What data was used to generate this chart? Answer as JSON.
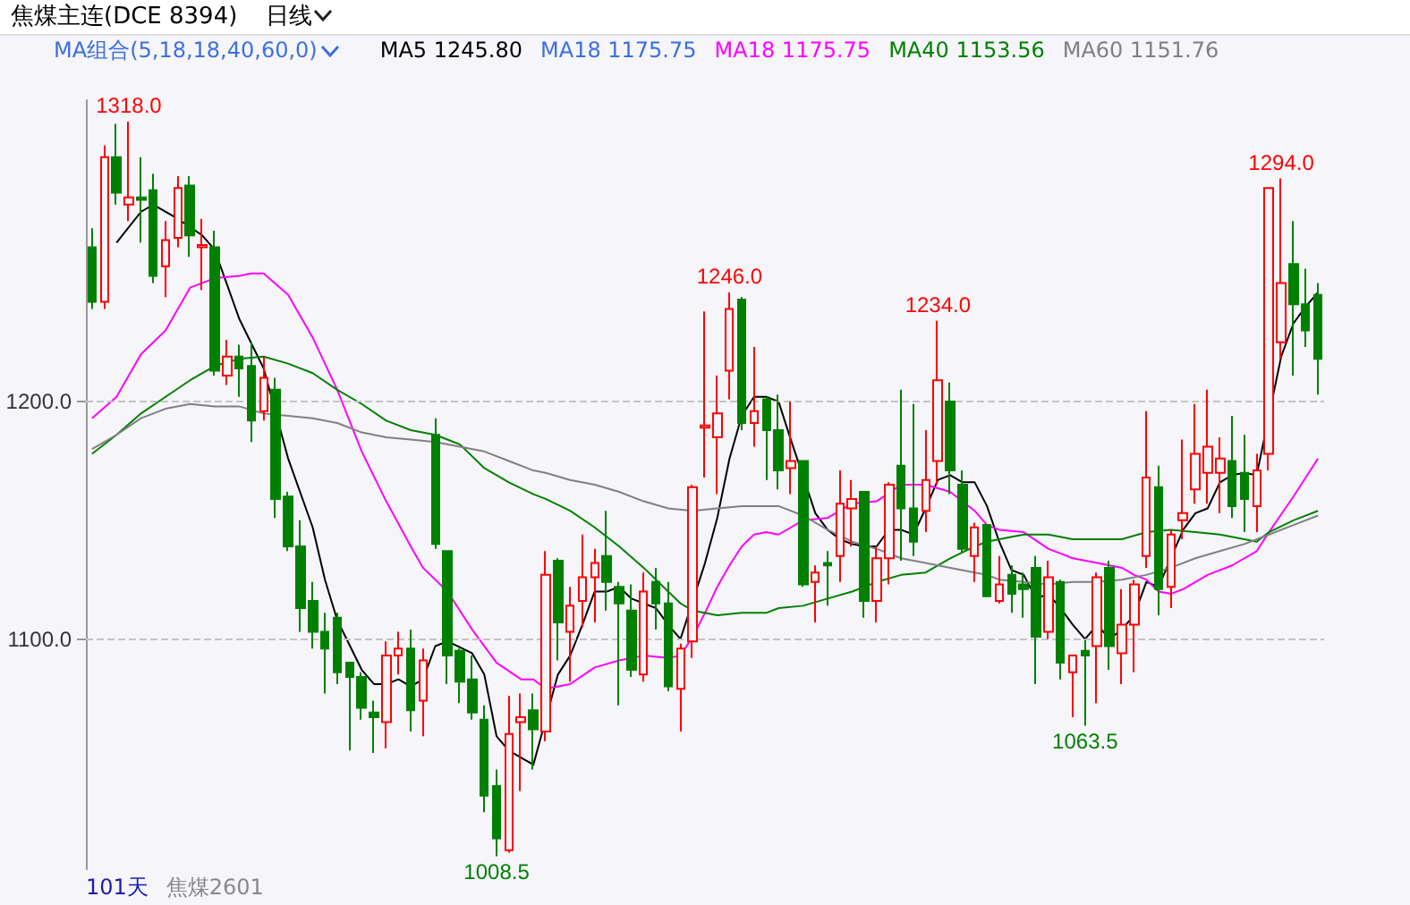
{
  "chart_data": {
    "type": "candlestick",
    "title": "焦煤主连(DCE 8394)",
    "subtitle": "日线",
    "legend_title": "MA组合(5,18,18,40,60,0)",
    "legend": "top",
    "grid": "y",
    "tick_labels": "y",
    "ylim": [
      1003,
      1327
    ],
    "yticks": [
      {
        "value": 1100,
        "label": "1100.0"
      },
      {
        "value": 1200,
        "label": "1200.0"
      }
    ],
    "categories": [
      null,
      null,
      null,
      null,
      null,
      null,
      null,
      null,
      null,
      null,
      null,
      null,
      null,
      null,
      null,
      null,
      null,
      null,
      null,
      null,
      null,
      null,
      null,
      null,
      null,
      null,
      null,
      null,
      null,
      null,
      null,
      null,
      null,
      null,
      null,
      null,
      null,
      null,
      null,
      null,
      null,
      null,
      null,
      null,
      null,
      null,
      null,
      null,
      null,
      null,
      null,
      null,
      null,
      null,
      null,
      null,
      null,
      null,
      null,
      null,
      null,
      null,
      null,
      null,
      null,
      null,
      null,
      null,
      null,
      null,
      null,
      null,
      null,
      null,
      null,
      null,
      null,
      null,
      null,
      null,
      null,
      null,
      null,
      null,
      null,
      null,
      null,
      null,
      null,
      null,
      null,
      null,
      null,
      null,
      null,
      null,
      null,
      null,
      null,
      null,
      null
    ],
    "ohlc": [
      [
        1265,
        1273,
        1239,
        1242
      ],
      [
        1242,
        1308,
        1239,
        1303
      ],
      [
        1303,
        1317,
        1283,
        1288
      ],
      [
        1283,
        1318,
        1276,
        1286
      ],
      [
        1286,
        1303,
        1267,
        1285
      ],
      [
        1289,
        1296,
        1250,
        1253
      ],
      [
        1257,
        1276,
        1244,
        1268
      ],
      [
        1269,
        1295,
        1265,
        1290
      ],
      [
        1291,
        1295,
        1261,
        1270
      ],
      [
        1265,
        1277,
        1247,
        1266
      ],
      [
        1265,
        1272,
        1211,
        1213
      ],
      [
        1211,
        1226,
        1207,
        1219
      ],
      [
        1219,
        1224,
        1202,
        1214
      ],
      [
        1215,
        1225,
        1183,
        1192
      ],
      [
        1196,
        1219,
        1192,
        1210
      ],
      [
        1205,
        1210,
        1151,
        1159
      ],
      [
        1160,
        1162,
        1137,
        1139
      ],
      [
        1139,
        1150,
        1103,
        1113
      ],
      [
        1116,
        1124,
        1096,
        1103
      ],
      [
        1103,
        1111,
        1077,
        1096
      ],
      [
        1109,
        1111,
        1081,
        1086
      ],
      [
        1090,
        1090,
        1053,
        1084
      ],
      [
        1084,
        1086,
        1066,
        1071
      ],
      [
        1069,
        1074,
        1052,
        1067
      ],
      [
        1065,
        1099,
        1054,
        1093
      ],
      [
        1093,
        1103,
        1085,
        1096
      ],
      [
        1096,
        1104,
        1061,
        1070
      ],
      [
        1074,
        1096,
        1059,
        1091
      ],
      [
        1186,
        1193,
        1138,
        1140
      ],
      [
        1137,
        1137,
        1081,
        1093
      ],
      [
        1095,
        1096,
        1073,
        1082
      ],
      [
        1083,
        1093,
        1066,
        1069
      ],
      [
        1066,
        1072,
        1027,
        1034
      ],
      [
        1038,
        1045,
        1008.5,
        1016
      ],
      [
        1011,
        1076,
        1010,
        1060
      ],
      [
        1065,
        1077,
        1036,
        1067
      ],
      [
        1070,
        1077,
        1045,
        1062
      ],
      [
        1061,
        1137,
        1057,
        1127
      ],
      [
        1133,
        1134,
        1091,
        1107
      ],
      [
        1103,
        1122,
        1082,
        1114
      ],
      [
        1116,
        1144,
        1105,
        1126
      ],
      [
        1126,
        1138,
        1107,
        1132
      ],
      [
        1135,
        1154,
        1112,
        1124
      ],
      [
        1122,
        1124,
        1072,
        1115
      ],
      [
        1112,
        1123,
        1084,
        1087
      ],
      [
        1085,
        1128,
        1082,
        1120
      ],
      [
        1124,
        1130,
        1104,
        1115
      ],
      [
        1115,
        1124,
        1078,
        1080
      ],
      [
        1079,
        1098,
        1061,
        1096
      ],
      [
        1099,
        1165,
        1092,
        1164
      ],
      [
        1189,
        1238,
        1168,
        1190
      ],
      [
        1185,
        1211,
        1161,
        1195
      ],
      [
        1213,
        1246,
        1201,
        1239
      ],
      [
        1243,
        1244,
        1188,
        1191
      ],
      [
        1191,
        1223,
        1181,
        1196
      ],
      [
        1201,
        1202,
        1167,
        1188
      ],
      [
        1188,
        1203,
        1163,
        1171
      ],
      [
        1172,
        1200,
        1161,
        1175
      ],
      [
        1175,
        1175,
        1122,
        1123
      ],
      [
        1124,
        1131,
        1107,
        1128
      ],
      [
        1132,
        1137,
        1114,
        1131
      ],
      [
        1135,
        1171,
        1124,
        1157
      ],
      [
        1155,
        1167,
        1139,
        1159
      ],
      [
        1162,
        1162,
        1109,
        1116
      ],
      [
        1116,
        1139,
        1107,
        1134
      ],
      [
        1134,
        1166,
        1123,
        1165
      ],
      [
        1173,
        1205,
        1133,
        1155
      ],
      [
        1155,
        1199,
        1135,
        1141
      ],
      [
        1154,
        1188,
        1145,
        1167
      ],
      [
        1175,
        1234,
        1165,
        1209
      ],
      [
        1200,
        1208,
        1161,
        1171
      ],
      [
        1165,
        1171,
        1136,
        1138
      ],
      [
        1135,
        1149,
        1124,
        1147
      ],
      [
        1148,
        1148,
        1118,
        1118
      ],
      [
        1116,
        1135,
        1115,
        1123
      ],
      [
        1127,
        1131,
        1111,
        1119
      ],
      [
        1123,
        1128,
        1109,
        1121
      ],
      [
        1130,
        1135,
        1081,
        1101
      ],
      [
        1103,
        1133,
        1100,
        1126
      ],
      [
        1124,
        1125,
        1083,
        1090
      ],
      [
        1086,
        1093,
        1067,
        1093
      ],
      [
        1095,
        1099.5,
        1063.5,
        1093
      ],
      [
        1097,
        1128,
        1073,
        1126
      ],
      [
        1130,
        1133,
        1087,
        1097
      ],
      [
        1094,
        1121,
        1081,
        1106
      ],
      [
        1106,
        1125,
        1086,
        1123
      ],
      [
        1135,
        1196,
        1130,
        1168
      ],
      [
        1164,
        1173,
        1110,
        1121
      ],
      [
        1122,
        1146,
        1113,
        1144
      ],
      [
        1150,
        1184,
        1142,
        1153
      ],
      [
        1163,
        1199,
        1157,
        1178
      ],
      [
        1170,
        1205,
        1157,
        1181
      ],
      [
        1170,
        1185,
        1153,
        1176
      ],
      [
        1175,
        1194,
        1151,
        1156
      ],
      [
        1170,
        1186,
        1145,
        1159
      ],
      [
        1156,
        1178,
        1145,
        1171
      ],
      [
        1178,
        1290,
        1171,
        1290
      ],
      [
        1225,
        1294,
        1218,
        1250
      ],
      [
        1258,
        1276,
        1211,
        1241
      ],
      [
        1241,
        1256,
        1223,
        1230
      ],
      [
        1245,
        1250,
        1203,
        1218
      ]
    ],
    "series": [
      {
        "type": "line",
        "name": "MA5 1245.80",
        "color": "#000000",
        "values": [
          null,
          null,
          1267,
          null,
          1280,
          1283,
          null,
          1277,
          null,
          1270,
          1264,
          null,
          1235,
          null,
          1214,
          null,
          1176,
          null,
          1147,
          1125,
          1108,
          null,
          1087,
          1081,
          1081,
          1083,
          1080,
          1083,
          1097,
          1099,
          null,
          1094,
          1085,
          1059,
          1053,
          null,
          1047,
          null,
          1085,
          1093,
          1106,
          1120,
          1120,
          1122,
          1117,
          1115,
          1113,
          1106,
          1100,
          null,
          1132,
          1151,
          1176,
          1194,
          1202,
          1202,
          1200,
          1184,
          null,
          1153,
          1146,
          1142,
          1140,
          1139,
          1139,
          1146,
          1146,
          1144,
          1155,
          1167,
          1169,
          1166,
          1166,
          1156,
          1141,
          1129,
          1127,
          1117,
          1119,
          1113,
          1106,
          1100,
          1106,
          1100,
          1104,
          1110,
          1124,
          1122,
          null,
          1146,
          1153,
          1155,
          1166,
          1169,
          1170,
          1169,
          null,
          1219,
          1233,
          1240,
          1246
        ]
      },
      {
        "type": "line",
        "name": "MA18 1175.75",
        "color": "#ff00ff",
        "values": [
          1193,
          null,
          1202,
          null,
          1220,
          null,
          1230,
          null,
          1248,
          null,
          1252,
          null,
          1253,
          1254,
          1254,
          null,
          1245,
          null,
          1227,
          null,
          1205,
          null,
          1179,
          null,
          1158,
          null,
          1139,
          1130,
          null,
          1120,
          null,
          1104,
          null,
          1090,
          null,
          1083,
          1083,
          1079,
          null,
          1081,
          null,
          1088,
          null,
          1091,
          null,
          1093,
          null,
          1092,
          1093,
          1101,
          1111,
          1122,
          1131,
          1139,
          1144,
          1145,
          1144,
          null,
          1150,
          null,
          1151,
          null,
          1157,
          null,
          1158,
          null,
          1165,
          null,
          1165,
          null,
          1162,
          null,
          1154,
          1148,
          1146,
          null,
          1145,
          null,
          1138,
          null,
          1134,
          null,
          1132,
          null,
          1130,
          1127,
          1125,
          1120,
          1119,
          1121,
          null,
          1127,
          null,
          1131,
          null,
          1137,
          1145,
          null,
          1160,
          null,
          1176
        ]
      },
      {
        "type": "line",
        "name": "MA40 1153.56",
        "color": "#008000",
        "values": [
          1178,
          null,
          1186,
          null,
          1195,
          null,
          1202,
          null,
          1209,
          null,
          1215,
          null,
          1218,
          null,
          1219,
          null,
          1216,
          null,
          1212,
          null,
          1205,
          null,
          1199,
          null,
          1192,
          null,
          1188,
          null,
          1186,
          null,
          1182,
          null,
          1172,
          null,
          1166,
          null,
          1161,
          1159,
          null,
          1154,
          null,
          1147,
          null,
          1139,
          null,
          1130,
          null,
          1120,
          1115,
          1112,
          null,
          1110,
          null,
          1111,
          null,
          1111,
          1113,
          null,
          1114,
          null,
          1117,
          null,
          1120,
          null,
          1124,
          null,
          1127,
          null,
          1128,
          null,
          1134,
          null,
          1139,
          1141,
          1142,
          null,
          1144,
          null,
          1144,
          null,
          1142,
          null,
          1142,
          null,
          1142,
          null,
          1145,
          null,
          1146,
          null,
          1145,
          null,
          1144,
          null,
          1142,
          1141,
          1145,
          null,
          1150,
          null,
          1154
        ]
      },
      {
        "type": "line",
        "name": "MA60 1151.76",
        "color": "#808080",
        "values": [
          1180,
          null,
          1186,
          null,
          1193,
          null,
          1197,
          null,
          1199,
          null,
          1198,
          null,
          1198,
          null,
          1195,
          null,
          1194,
          null,
          1193,
          null,
          1191,
          null,
          1187,
          null,
          1185,
          null,
          1184,
          null,
          1183,
          null,
          1181,
          null,
          1179,
          null,
          1175,
          null,
          1171,
          1170,
          null,
          1167,
          null,
          1165,
          null,
          1162,
          null,
          1158,
          null,
          1155,
          null,
          1154,
          null,
          1155,
          null,
          1156,
          null,
          1156,
          1156,
          null,
          1152,
          null,
          1146,
          null,
          1141,
          null,
          1138,
          null,
          1134,
          null,
          1132,
          null,
          1130,
          null,
          1128,
          1127,
          1125,
          null,
          1124,
          null,
          1123,
          null,
          1124,
          null,
          1124,
          null,
          1125,
          null,
          1127,
          null,
          1130,
          null,
          1134,
          null,
          1137,
          null,
          1140,
          null,
          1144,
          null,
          1148,
          null,
          1152
        ]
      }
    ],
    "annotations": [
      "MA18 1175.75",
      {
        "text": "1318.0",
        "y": 1318
      },
      {
        "text": "1246.0",
        "y": 1246
      },
      {
        "text": "1234.0",
        "y": 1234
      },
      {
        "text": "1294.0",
        "y": 1294
      },
      {
        "text": "1008.5",
        "y": 1008.5
      },
      {
        "text": "1063.5",
        "y": 1063.5
      },
      "101天",
      "焦煤2601"
    ]
  }
}
